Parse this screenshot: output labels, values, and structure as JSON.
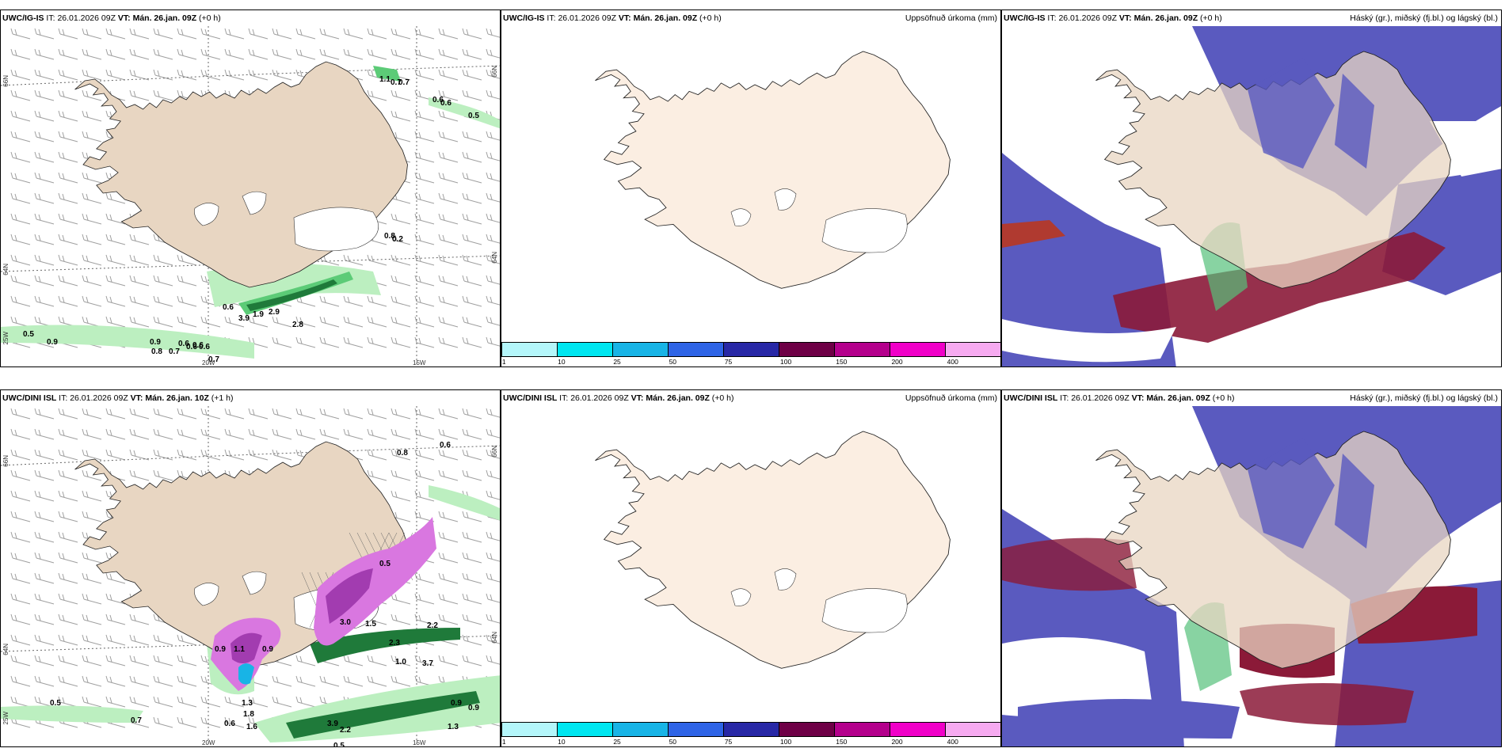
{
  "rows": [
    {
      "model": "UWC/IG-IS",
      "it_label": "IT:",
      "it_value": "26.01.2026 09Z",
      "vt_label": "VT:",
      "wind_vt": "Mán. 26.jan. 09Z",
      "wind_lead": "(+0 h)",
      "other_vt": "Mán. 26.jan. 09Z",
      "other_lead": "(+0 h)"
    },
    {
      "model": "UWC/DINI ISL",
      "it_label": "IT:",
      "it_value": "26.01.2026 09Z",
      "vt_label": "VT:",
      "wind_vt": "Mán. 26.jan. 10Z",
      "wind_lead": "(+1 h)",
      "other_vt": "Mán. 26.jan. 09Z",
      "other_lead": "(+0 h)"
    }
  ],
  "precip_title": "Uppsöfnuð úrkoma (mm)",
  "cloud_title": "Háský (gr.), miðský (fj.bl.) og lágský (bl.)",
  "colorbar": {
    "ticks": [
      "1",
      "10",
      "25",
      "50",
      "75",
      "100",
      "150",
      "200",
      "400"
    ],
    "colors": [
      "#b4f6fa",
      "#00e6f0",
      "#18b4e6",
      "#2e64e6",
      "#2828a6",
      "#6e0046",
      "#b4008c",
      "#f000c8",
      "#f6aaf0"
    ]
  },
  "coords": {
    "lat_66": "66N",
    "lat_64": "64N",
    "lat_25w": "25W",
    "lon_20w": "20W",
    "lon_15w": "15W",
    "right_66": "66N",
    "right_64": "64N"
  },
  "top_labels": [
    "1.1",
    "0.7",
    "0.7",
    "0.6",
    "0.6",
    "0.5",
    "0.8",
    "0.2",
    "0.6",
    "3.9",
    "1.9",
    "2.9",
    "2.8",
    "0.5",
    "0.9",
    "0.9",
    "0.8",
    "0.7",
    "0.6",
    "0.6",
    "0.6",
    "0.6",
    "0.7"
  ],
  "bottom_labels": [
    "0.8",
    "0.6",
    "0.5",
    "3.0",
    "1.5",
    "2.3",
    "1.0",
    "3.7",
    "2.2",
    "0.9",
    "1.1",
    "0.9",
    "1.3",
    "1.8",
    "0.6",
    "1.6",
    "0.5",
    "0.7",
    "0.9",
    "0.9",
    "1.3",
    "3.9",
    "2.2",
    "0.5"
  ],
  "colors": {
    "land": "#e8d6c2",
    "land_plain": "#fbeee2",
    "green_light": "#bcefc0",
    "green_mid": "#5ccb77",
    "green_dark": "#1f7a3a",
    "magenta": "#d977e0",
    "cloud_blue": "#5a5abf",
    "cloud_red": "#8b1a38"
  }
}
